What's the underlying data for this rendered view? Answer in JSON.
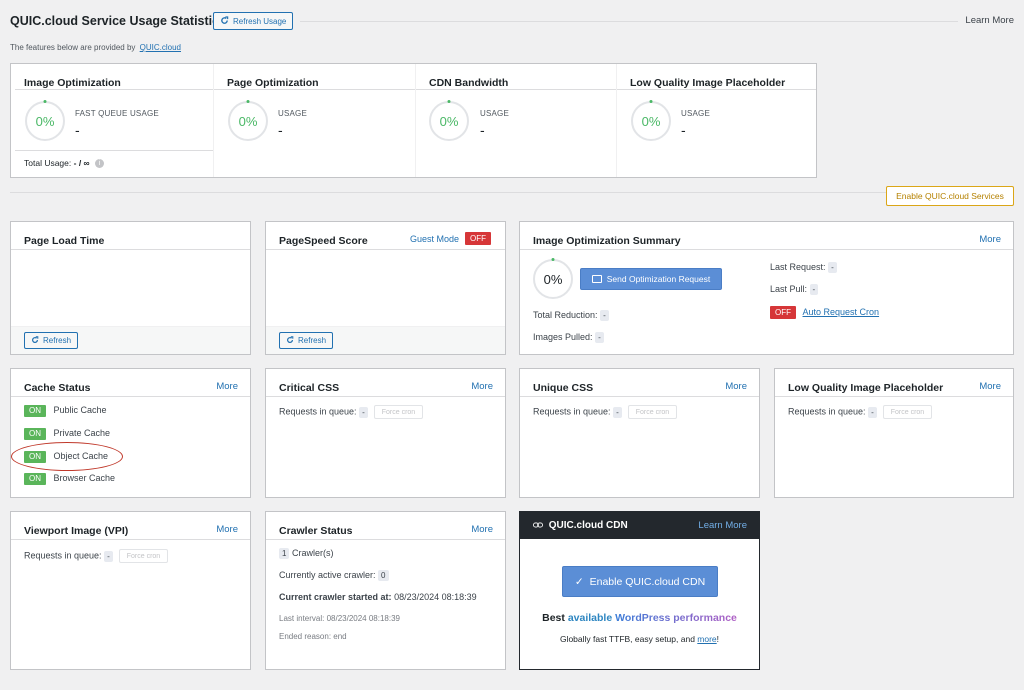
{
  "header": {
    "title": "QUIC.cloud Service Usage Statistics",
    "refresh_label": "Refresh Usage",
    "learn_more": "Learn More",
    "subtitle": "The features below are provided by",
    "subtitle_link": "QUIC.cloud"
  },
  "usage": [
    {
      "title": "Image Optimization",
      "percent": "0%",
      "label": "FAST QUEUE USAGE",
      "value": "-",
      "total_label": "Total Usage:",
      "total_value": "- / ∞"
    },
    {
      "title": "Page Optimization",
      "percent": "0%",
      "label": "USAGE",
      "value": "-"
    },
    {
      "title": "CDN Bandwidth",
      "percent": "0%",
      "label": "USAGE",
      "value": "-"
    },
    {
      "title": "Low Quality Image Placeholder",
      "percent": "0%",
      "label": "USAGE",
      "value": "-"
    }
  ],
  "enable_services": "Enable QUIC.cloud Services",
  "page_load": {
    "title": "Page Load Time",
    "refresh": "Refresh"
  },
  "pagespeed": {
    "title": "PageSpeed Score",
    "guest_mode": "Guest Mode",
    "toggle": "OFF",
    "refresh": "Refresh"
  },
  "img_summary": {
    "title": "Image Optimization Summary",
    "more": "More",
    "percent": "0%",
    "send_button": "Send Optimization Request",
    "total_reduction": "Total Reduction:",
    "images_pulled": "Images Pulled:",
    "last_request": "Last Request:",
    "last_pull": "Last Pull:",
    "cron_toggle": "OFF",
    "cron_link": "Auto Request Cron",
    "dash": "-"
  },
  "cache_status": {
    "title": "Cache Status",
    "more": "More",
    "items": [
      {
        "state": "ON",
        "label": "Public Cache"
      },
      {
        "state": "ON",
        "label": "Private Cache"
      },
      {
        "state": "ON",
        "label": "Object Cache"
      },
      {
        "state": "ON",
        "label": "Browser Cache"
      }
    ]
  },
  "critical_css": {
    "title": "Critical CSS",
    "more": "More",
    "queue_label": "Requests in queue:",
    "queue_value": "-",
    "force": "Force cron"
  },
  "unique_css": {
    "title": "Unique CSS",
    "more": "More",
    "queue_label": "Requests in queue:",
    "queue_value": "-",
    "force": "Force cron"
  },
  "lqip": {
    "title": "Low Quality Image Placeholder",
    "more": "More",
    "queue_label": "Requests in queue:",
    "queue_value": "-",
    "force": "Force cron"
  },
  "vpi": {
    "title": "Viewport Image (VPI)",
    "more": "More",
    "queue_label": "Requests in queue:",
    "queue_value": "-",
    "force": "Force cron"
  },
  "crawler": {
    "title": "Crawler Status",
    "more": "More",
    "count": "1",
    "count_label": "Crawler(s)",
    "active_label": "Currently active crawler:",
    "active_value": "0",
    "started_label": "Current crawler started at:",
    "started_value": "08/23/2024 08:18:39",
    "last_interval_label": "Last interval:",
    "last_interval_value": "08/23/2024 08:18:39",
    "ended_label": "Ended reason:",
    "ended_value": "end"
  },
  "cdn": {
    "title": "QUIC.cloud CDN",
    "learn_more": "Learn More",
    "enable_button": "Enable QUIC.cloud CDN",
    "tagline_1": "Best",
    "tagline_2": "available",
    "tagline_3": "WordPress performance",
    "desc": "Globally fast TTFB, easy setup, and",
    "desc_link": "more",
    "desc_end": "!"
  },
  "colors": {
    "accent": "#2271b1",
    "on": "#5ab55a",
    "off": "#d63638",
    "percent": "#4ab866",
    "cdn_header": "#23282d"
  }
}
